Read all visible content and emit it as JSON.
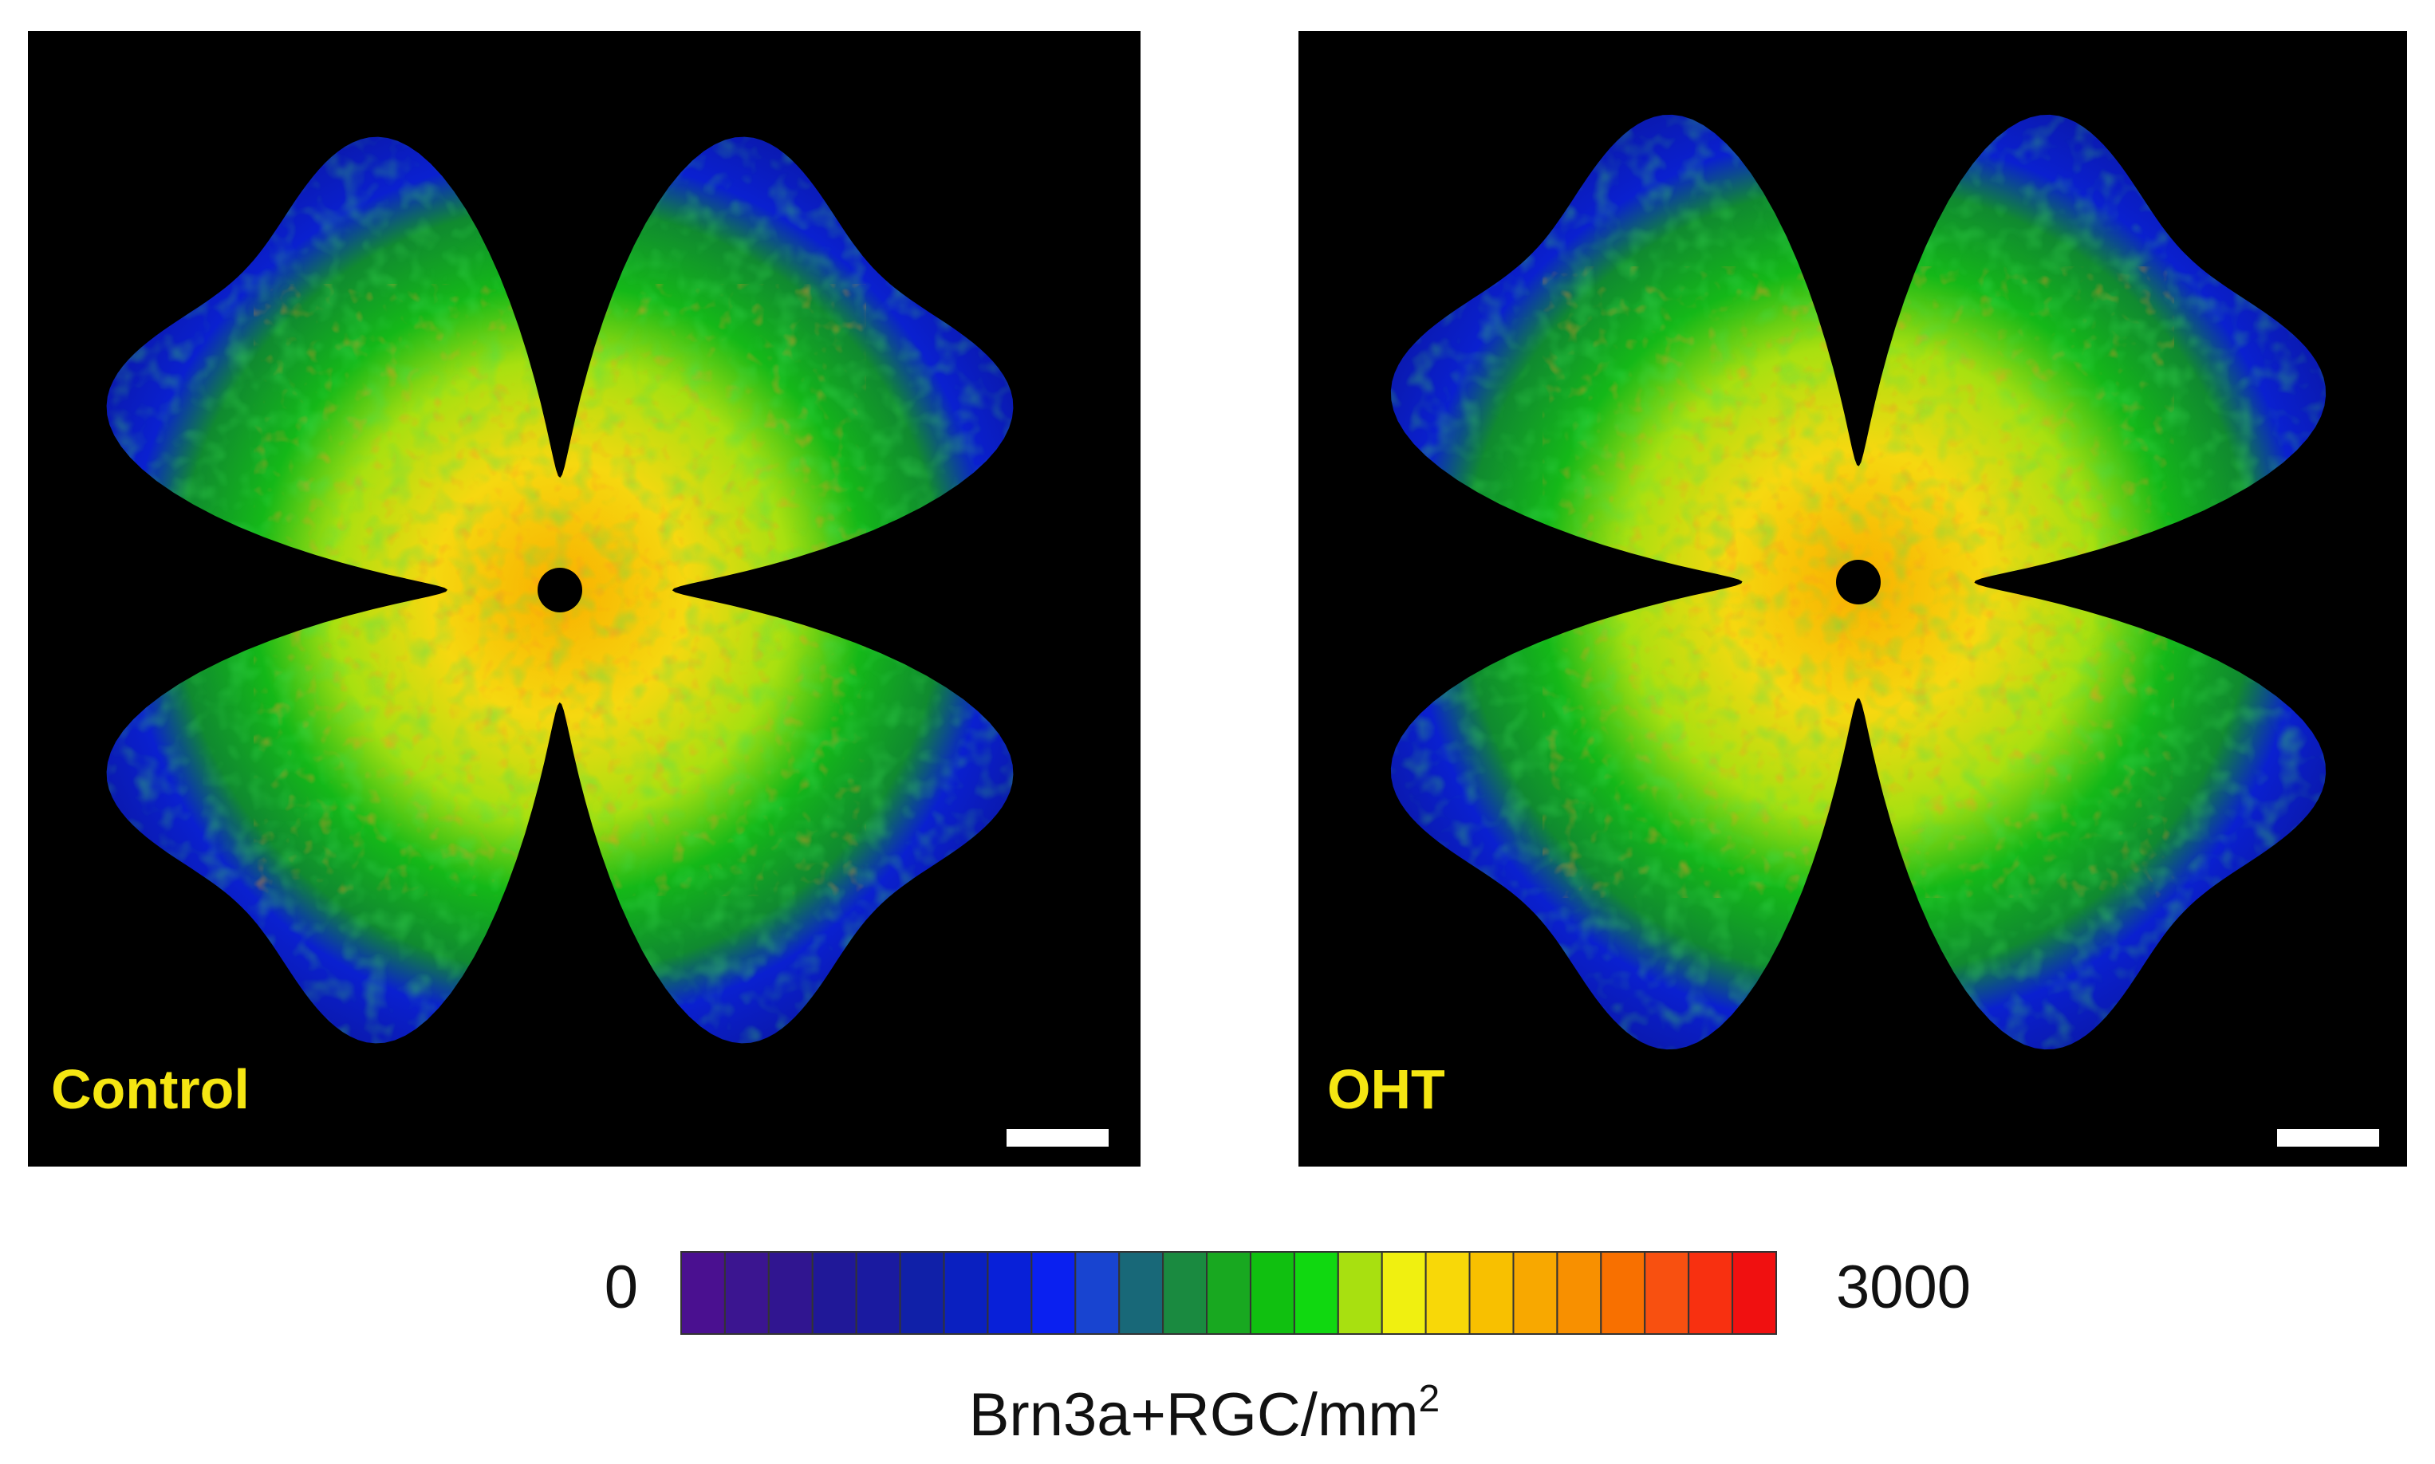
{
  "panels": [
    {
      "label": "Control"
    },
    {
      "label": "OHT"
    }
  ],
  "colorbar": {
    "min": 0,
    "max": 3000,
    "label": "Brn3a+RGC/mm",
    "label_superscript": "2"
  }
}
